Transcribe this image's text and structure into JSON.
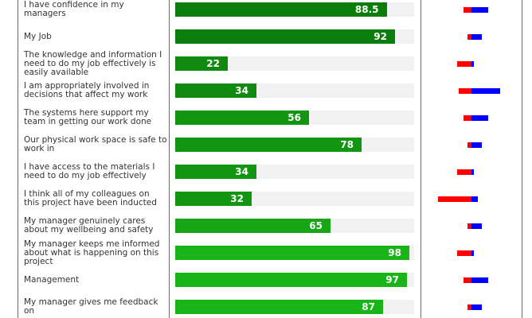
{
  "chart_data": {
    "type": "bar",
    "xlim": [
      0,
      100
    ],
    "categories": [
      "I have confidence in my managers",
      "My Job",
      "The knowledge and information I need to do my job effectively is easily available",
      "I am appropriately involved in decisions that affect my work",
      "The systems here support my team in getting our work done",
      "Our physical work space is safe to work in",
      "I have access to the materials I need to do my job effectively",
      "I think all of my colleagues on this project have been inducted",
      "My manager genuinely cares about my wellbeing and safety",
      "My manager keeps me informed about what is happening on this project",
      "Management",
      "My manager gives me feedback on"
    ],
    "values": [
      88.5,
      92,
      22,
      34,
      56,
      78,
      34,
      32,
      65,
      98,
      97,
      87
    ],
    "value_labels": [
      "88.5",
      "92",
      "22",
      "34",
      "56",
      "78",
      "34",
      "32",
      "65",
      "98",
      "97",
      "87"
    ],
    "bar_colors": [
      "#0a7d0a",
      "#0a7d0a",
      "#0f8a0f",
      "#0f8a0f",
      "#129612",
      "#129612",
      "#129612",
      "#129612",
      "#15a515",
      "#18b418",
      "#18b418",
      "#18b418"
    ],
    "mini_bars": [
      {
        "negative": 0.04,
        "positive": 0.08
      },
      {
        "negative": 0.02,
        "positive": 0.05
      },
      {
        "negative": 0.07,
        "positive": 0.01
      },
      {
        "negative": 0.06,
        "positive": 0.14
      },
      {
        "negative": 0.04,
        "positive": 0.08
      },
      {
        "negative": 0.02,
        "positive": 0.05
      },
      {
        "negative": 0.07,
        "positive": 0.01
      },
      {
        "negative": 0.16,
        "positive": 0.03
      },
      {
        "negative": 0.02,
        "positive": 0.05
      },
      {
        "negative": 0.07,
        "positive": 0.01
      },
      {
        "negative": 0.04,
        "positive": 0.08
      },
      {
        "negative": 0.02,
        "positive": 0.05
      }
    ],
    "mini_colors": {
      "negative": "#ff0000",
      "positive": "#0000ff"
    }
  }
}
